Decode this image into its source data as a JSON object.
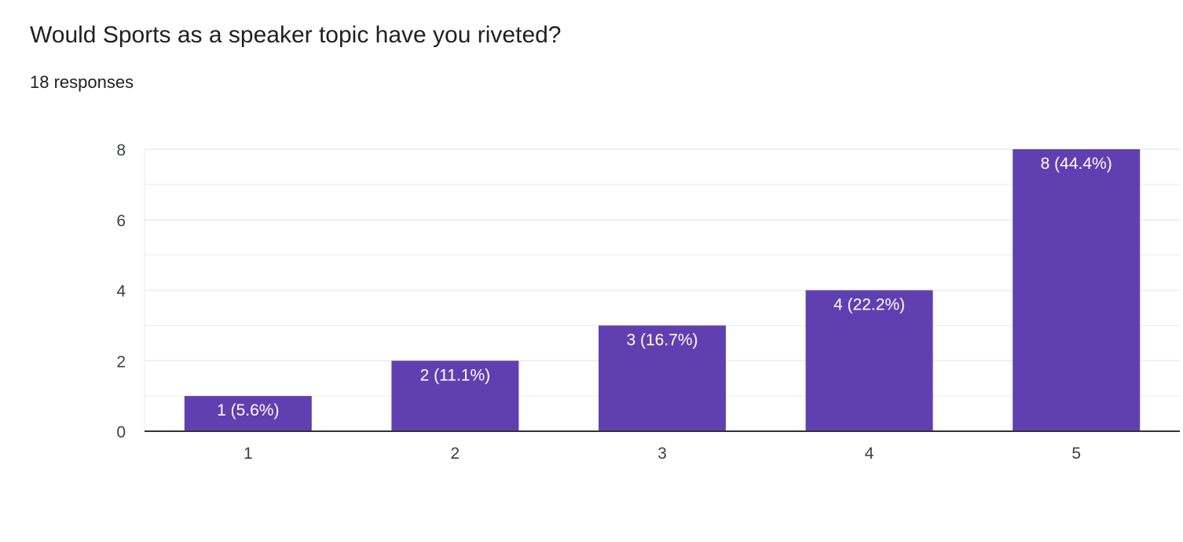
{
  "question": {
    "title": "Would Sports as a speaker topic have you riveted?",
    "responses": "18 responses"
  },
  "colors": {
    "bar": "#6040b0",
    "gridline": "#ebebeb",
    "axis": "#333333"
  },
  "chart_data": {
    "type": "bar",
    "categories": [
      "1",
      "2",
      "3",
      "4",
      "5"
    ],
    "values": [
      1,
      2,
      3,
      4,
      8
    ],
    "data_labels": [
      "1 (5.6%)",
      "2 (11.1%)",
      "3 (16.7%)",
      "4 (22.2%)",
      "8 (44.4%)"
    ],
    "y_ticks": [
      "0",
      "2",
      "4",
      "6",
      "8"
    ],
    "ylim": [
      0,
      8
    ],
    "title": "Would Sports as a speaker topic have you riveted?",
    "xlabel": "",
    "ylabel": "",
    "grid": true,
    "legend": "none"
  }
}
